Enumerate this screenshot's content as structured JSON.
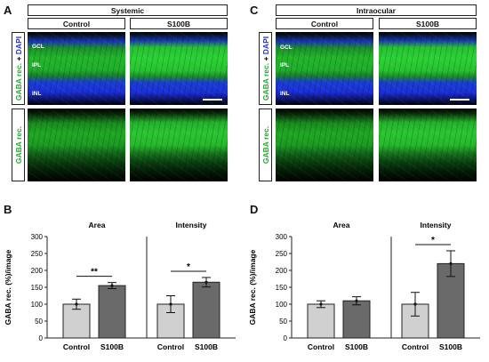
{
  "panels": {
    "A": {
      "letter": "A",
      "title": "Systemic",
      "col_labels": [
        "Control",
        "S100B"
      ],
      "row_label_merge": {
        "part1": "GABA rec.",
        "part2": " + ",
        "part3": "DAPI"
      },
      "row_label_gaba": "GABA rec.",
      "layer_labels": [
        "GCL",
        "IPL",
        "INL"
      ]
    },
    "C": {
      "letter": "C",
      "title": "Intraocular",
      "col_labels": [
        "Control",
        "S100B"
      ],
      "row_label_merge": {
        "part1": "GABA rec.",
        "part2": " + ",
        "part3": "DAPI"
      },
      "row_label_gaba": "GABA rec.",
      "layer_labels": [
        "GCL",
        "IPL",
        "INL"
      ]
    },
    "B": {
      "letter": "B"
    },
    "D": {
      "letter": "D"
    }
  },
  "chart_data": [
    {
      "type": "bar",
      "panel": "B",
      "ylabel": "GABA rec. (%)/image",
      "ylim": [
        0,
        300
      ],
      "yticks": [
        0,
        50,
        100,
        150,
        200,
        250,
        300
      ],
      "groups": [
        {
          "title": "Area",
          "categories": [
            "Control",
            "S100B"
          ],
          "values": [
            100,
            155
          ],
          "errors": [
            15,
            9
          ],
          "significance": "**"
        },
        {
          "title": "Intensity",
          "categories": [
            "Control",
            "S100B"
          ],
          "values": [
            100,
            165
          ],
          "errors": [
            25,
            14
          ],
          "significance": "*"
        }
      ],
      "bar_colors": [
        "#d0d0d0",
        "#6a6a6a"
      ]
    },
    {
      "type": "bar",
      "panel": "D",
      "ylabel": "GABA rec. (%)/image",
      "ylim": [
        0,
        300
      ],
      "yticks": [
        0,
        50,
        100,
        150,
        200,
        250,
        300
      ],
      "groups": [
        {
          "title": "Area",
          "categories": [
            "Control",
            "S100B"
          ],
          "values": [
            100,
            110
          ],
          "errors": [
            10,
            12
          ],
          "significance": ""
        },
        {
          "title": "Intensity",
          "categories": [
            "Control",
            "S100B"
          ],
          "values": [
            100,
            220
          ],
          "errors": [
            35,
            38
          ],
          "significance": "*"
        }
      ],
      "bar_colors": [
        "#d0d0d0",
        "#6a6a6a"
      ]
    }
  ]
}
